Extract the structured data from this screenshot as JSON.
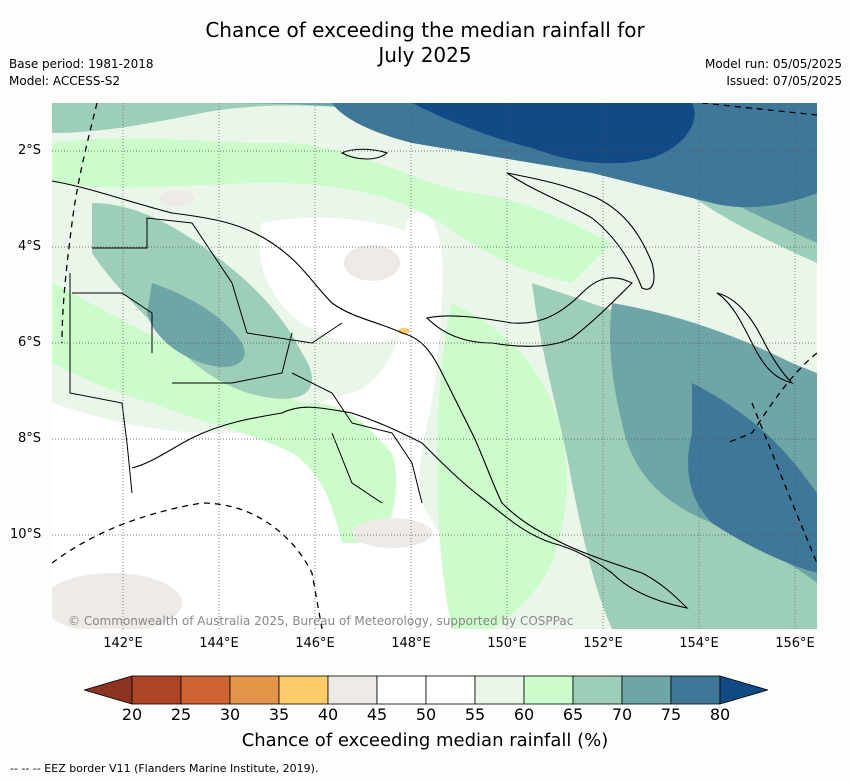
{
  "title_line1": "Chance of exceeding the median rainfall for",
  "title_line2": "July 2025",
  "base_period": "Base period: 1981-2018",
  "model": "Model: ACCESS-S2",
  "model_run": "Model run: 05/05/2025",
  "issued": "Issued: 07/05/2025",
  "copyright": "© Commonwealth of Australia 2025, Bureau of Meteorology, supported by COSPPac",
  "lat_labels": [
    "2°S",
    "4°S",
    "6°S",
    "8°S",
    "10°S"
  ],
  "lon_labels": [
    "142°E",
    "144°E",
    "146°E",
    "148°E",
    "150°E",
    "152°E",
    "154°E",
    "156°E"
  ],
  "colorbar": {
    "title": "Chance of exceeding median rainfall (%)",
    "ticks": [
      "20",
      "25",
      "30",
      "35",
      "40",
      "45",
      "50",
      "55",
      "60",
      "65",
      "70",
      "75",
      "80"
    ],
    "colors": [
      "#ac4425",
      "#cd6431",
      "#e3954a",
      "#fccc68",
      "#eeeae8",
      "#ffffff",
      "#ffffff",
      "#ebf6ea",
      "#ccfccc",
      "#9dcfb8",
      "#6ea5a7",
      "#3f7799"
    ],
    "under_color": "#8c3322",
    "over_color": "#114a85"
  },
  "eez_legend": "-- -- -- EEZ border V11 (Flanders Marine Institute, 2019)."
}
